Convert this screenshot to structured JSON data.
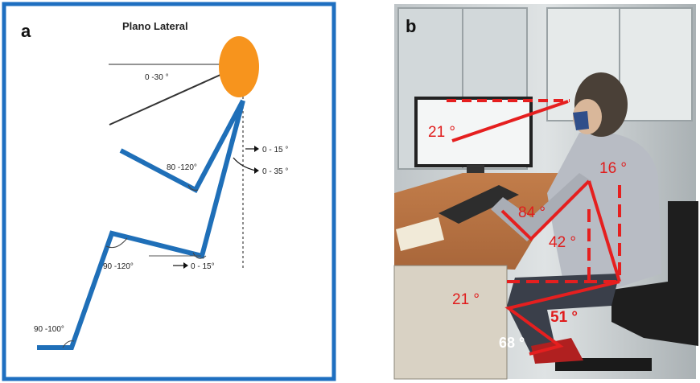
{
  "panel_a": {
    "letter": "a",
    "title": "Plano Lateral",
    "angles": {
      "head_neck": "0 -30 °",
      "neck_vert": "0 - 15 °",
      "trunk_vert": "0 - 35 °",
      "elbow": "80 -120°",
      "hip": "90 -120°",
      "thigh": "0 - 15°",
      "ankle": "90 -100°"
    }
  },
  "panel_b": {
    "letter": "b",
    "angles": {
      "head": "21 °",
      "neck": "16 °",
      "elbow": "84 °",
      "trunk": "42 °",
      "hip": "21 °",
      "knee": "51 °",
      "ankle": "68 °"
    }
  },
  "colors": {
    "frame_blue": "#1e6fc0",
    "skeleton_blue": "#1f6fb8",
    "head_orange": "#f7941d",
    "annotation_red": "#e51f1f"
  }
}
